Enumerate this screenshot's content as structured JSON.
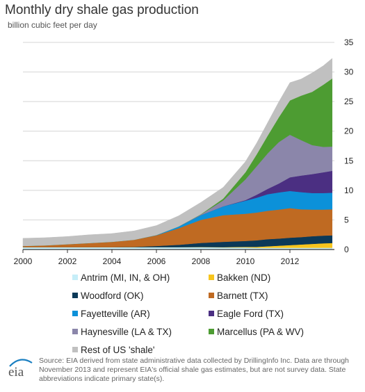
{
  "chart_data": {
    "type": "area",
    "title": "Monthly dry shale gas production",
    "subtitle": "billion cubic feet per day",
    "xlabel": "",
    "ylabel": "",
    "ylim": [
      0,
      35
    ],
    "y_ticks": [
      "0",
      "5",
      "10",
      "15",
      "20",
      "25",
      "30",
      "35"
    ],
    "xlim": [
      2000,
      2014
    ],
    "x_ticks": [
      "2000",
      "2002",
      "2004",
      "2006",
      "2008",
      "2010",
      "2012"
    ],
    "grid": "horizontal",
    "y_axis_position": "right",
    "x": [
      2000,
      2001,
      2002,
      2003,
      2004,
      2005,
      2006,
      2007,
      2008,
      2009,
      2010,
      2010.5,
      2011,
      2011.5,
      2012,
      2012.5,
      2013,
      2013.5,
      2013.9
    ],
    "series": [
      {
        "name": "Antrim (MI, IN, & OH)",
        "color": "#c6eef8",
        "values": [
          0.4,
          0.4,
          0.4,
          0.4,
          0.4,
          0.4,
          0.4,
          0.4,
          0.4,
          0.35,
          0.35,
          0.3,
          0.3,
          0.3,
          0.3,
          0.3,
          0.3,
          0.3,
          0.3
        ]
      },
      {
        "name": "Bakken (ND)",
        "color": "#f7c51d",
        "values": [
          0,
          0,
          0,
          0,
          0,
          0,
          0,
          0,
          0.02,
          0.05,
          0.1,
          0.15,
          0.25,
          0.35,
          0.45,
          0.55,
          0.65,
          0.75,
          0.8
        ]
      },
      {
        "name": "Woodford (OK)",
        "color": "#0b3958",
        "values": [
          0,
          0,
          0,
          0,
          0,
          0.05,
          0.2,
          0.4,
          0.7,
          0.9,
          1.0,
          1.1,
          1.2,
          1.2,
          1.25,
          1.25,
          1.3,
          1.3,
          1.3
        ]
      },
      {
        "name": "Barnett (TX)",
        "color": "#bf6a22",
        "values": [
          0.2,
          0.3,
          0.5,
          0.7,
          0.9,
          1.2,
          1.8,
          2.8,
          3.9,
          4.5,
          4.6,
          4.7,
          4.8,
          4.9,
          5.0,
          4.7,
          4.5,
          4.4,
          4.4
        ]
      },
      {
        "name": "Fayetteville (AR)",
        "color": "#0c91d9",
        "values": [
          0,
          0,
          0,
          0,
          0,
          0,
          0.05,
          0.3,
          0.8,
          1.5,
          2.2,
          2.5,
          2.8,
          2.9,
          2.9,
          2.9,
          2.8,
          2.8,
          2.8
        ]
      },
      {
        "name": "Eagle Ford (TX)",
        "color": "#4b2f82",
        "values": [
          0,
          0,
          0,
          0,
          0,
          0,
          0,
          0,
          0,
          0,
          0.1,
          0.5,
          0.9,
          1.5,
          2.3,
          2.8,
          3.2,
          3.5,
          3.7
        ]
      },
      {
        "name": "Haynesville (LA & TX)",
        "color": "#8b86aa",
        "values": [
          0,
          0,
          0,
          0,
          0,
          0,
          0,
          0,
          0.1,
          1.0,
          3.5,
          4.8,
          6.0,
          7.0,
          7.2,
          6.0,
          4.9,
          4.3,
          4.1
        ]
      },
      {
        "name": "Marcellus (PA & WV)",
        "color": "#4d9c32",
        "values": [
          0,
          0,
          0,
          0,
          0,
          0,
          0,
          0,
          0.05,
          0.3,
          1.2,
          2.0,
          3.0,
          4.2,
          5.8,
          7.5,
          9.0,
          10.5,
          11.5
        ]
      },
      {
        "name": "Rest of US 'shale'",
        "color": "#c0c0c0",
        "values": [
          1.3,
          1.3,
          1.3,
          1.4,
          1.4,
          1.5,
          1.6,
          1.8,
          2.0,
          1.9,
          1.8,
          1.9,
          2.2,
          2.6,
          3.0,
          2.8,
          3.2,
          3.2,
          3.4
        ]
      }
    ]
  },
  "legend": [
    "Antrim (MI, IN, & OH)",
    "Bakken (ND)",
    "Woodford (OK)",
    "Barnett (TX)",
    "Fayetteville (AR)",
    "Eagle Ford (TX)",
    "Haynesville (LA & TX)",
    "Marcellus (PA & WV)",
    "Rest of US 'shale'"
  ],
  "logo_text": "eia",
  "source": "Source: EIA derived from state administrative data collected by DrillingInfo Inc. Data are through November 2013 and represent EIA's official shale gas estimates, but are not survey data. State abbreviations indicate primary state(s).",
  "colors": {
    "grid": "#d4d4d4",
    "axis": "#333333",
    "logo_arc": "#1a7fc1"
  }
}
